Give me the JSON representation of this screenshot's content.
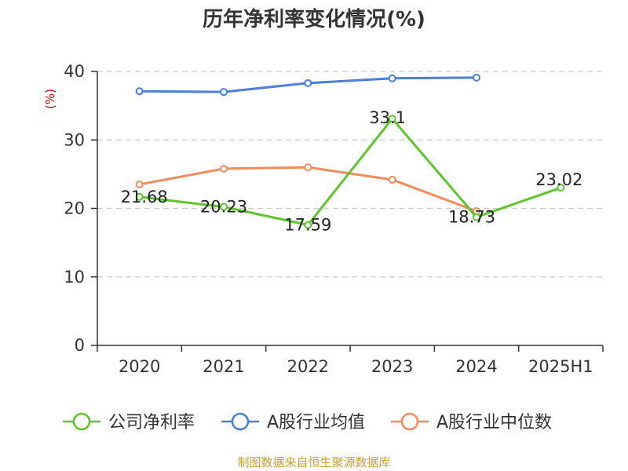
{
  "chart_data": {
    "type": "line",
    "title": "历年净利率变化情况(%)",
    "ylabel": "(%)",
    "xlabel": "",
    "categories": [
      "2020",
      "2021",
      "2022",
      "2023",
      "2024",
      "2025H1"
    ],
    "ylim": [
      0,
      40
    ],
    "yticks": [
      0,
      10,
      20,
      30,
      40
    ],
    "grid": true,
    "legend_position": "bottom",
    "series": [
      {
        "name": "公司净利率",
        "color": "#5cc72a",
        "values": [
          21.68,
          20.23,
          17.59,
          33.1,
          18.73,
          23.02
        ],
        "labels": [
          "21.68",
          "20.23",
          "17.59",
          "33.1",
          "18.73",
          "23.02"
        ]
      },
      {
        "name": "A股行业均值",
        "color": "#4a7fdb",
        "values": [
          37.1,
          37.0,
          38.3,
          39.0,
          39.1,
          null
        ]
      },
      {
        "name": "A股行业中位数",
        "color": "#f48b5a",
        "values": [
          23.5,
          25.8,
          26.0,
          24.2,
          19.6,
          null
        ]
      }
    ]
  },
  "source": "制图数据来自恒生聚源数据库"
}
